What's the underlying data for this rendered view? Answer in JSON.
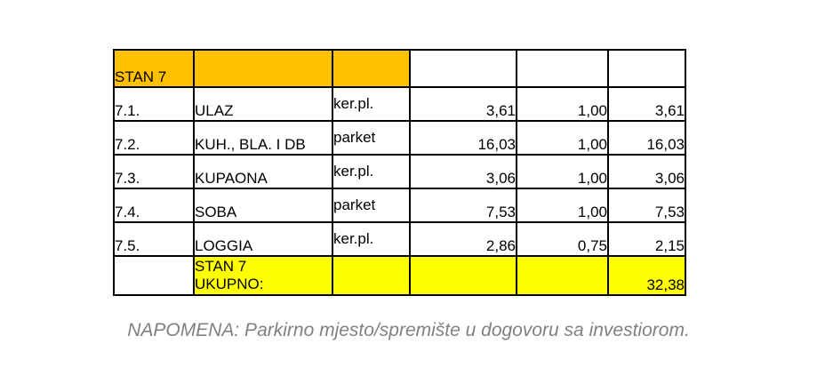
{
  "table": {
    "header": {
      "label": "STAN 7"
    },
    "rows": [
      {
        "num": "7.1.",
        "name": "ULAZ",
        "material": "ker.pl.",
        "area": "3,61",
        "coef": "1,00",
        "total": "3,61"
      },
      {
        "num": "7.2.",
        "name": "KUH., BLA. I DB",
        "material": "parket",
        "area": "16,03",
        "coef": "1,00",
        "total": "16,03"
      },
      {
        "num": "7.3.",
        "name": "KUPAONA",
        "material": "ker.pl.",
        "area": "3,06",
        "coef": "1,00",
        "total": "3,06"
      },
      {
        "num": "7.4.",
        "name": "SOBA",
        "material": "parket",
        "area": "7,53",
        "coef": "1,00",
        "total": "7,53"
      },
      {
        "num": "7.5.",
        "name": "LOGGIA",
        "material": "ker.pl.",
        "area": "2,86",
        "coef": "0,75",
        "total": "2,15"
      }
    ],
    "total_row": {
      "label_line1": "STAN 7",
      "label_line2": "UKUPNO:",
      "total": "32,38"
    },
    "colors": {
      "header_bg": "#FFC000",
      "total_bg": "#FFFF00",
      "border": "#000000",
      "note_text": "#808080"
    }
  },
  "note": {
    "text": "NAPOMENA: Parkirno mjesto/spremište u dogovoru sa investiorom."
  }
}
